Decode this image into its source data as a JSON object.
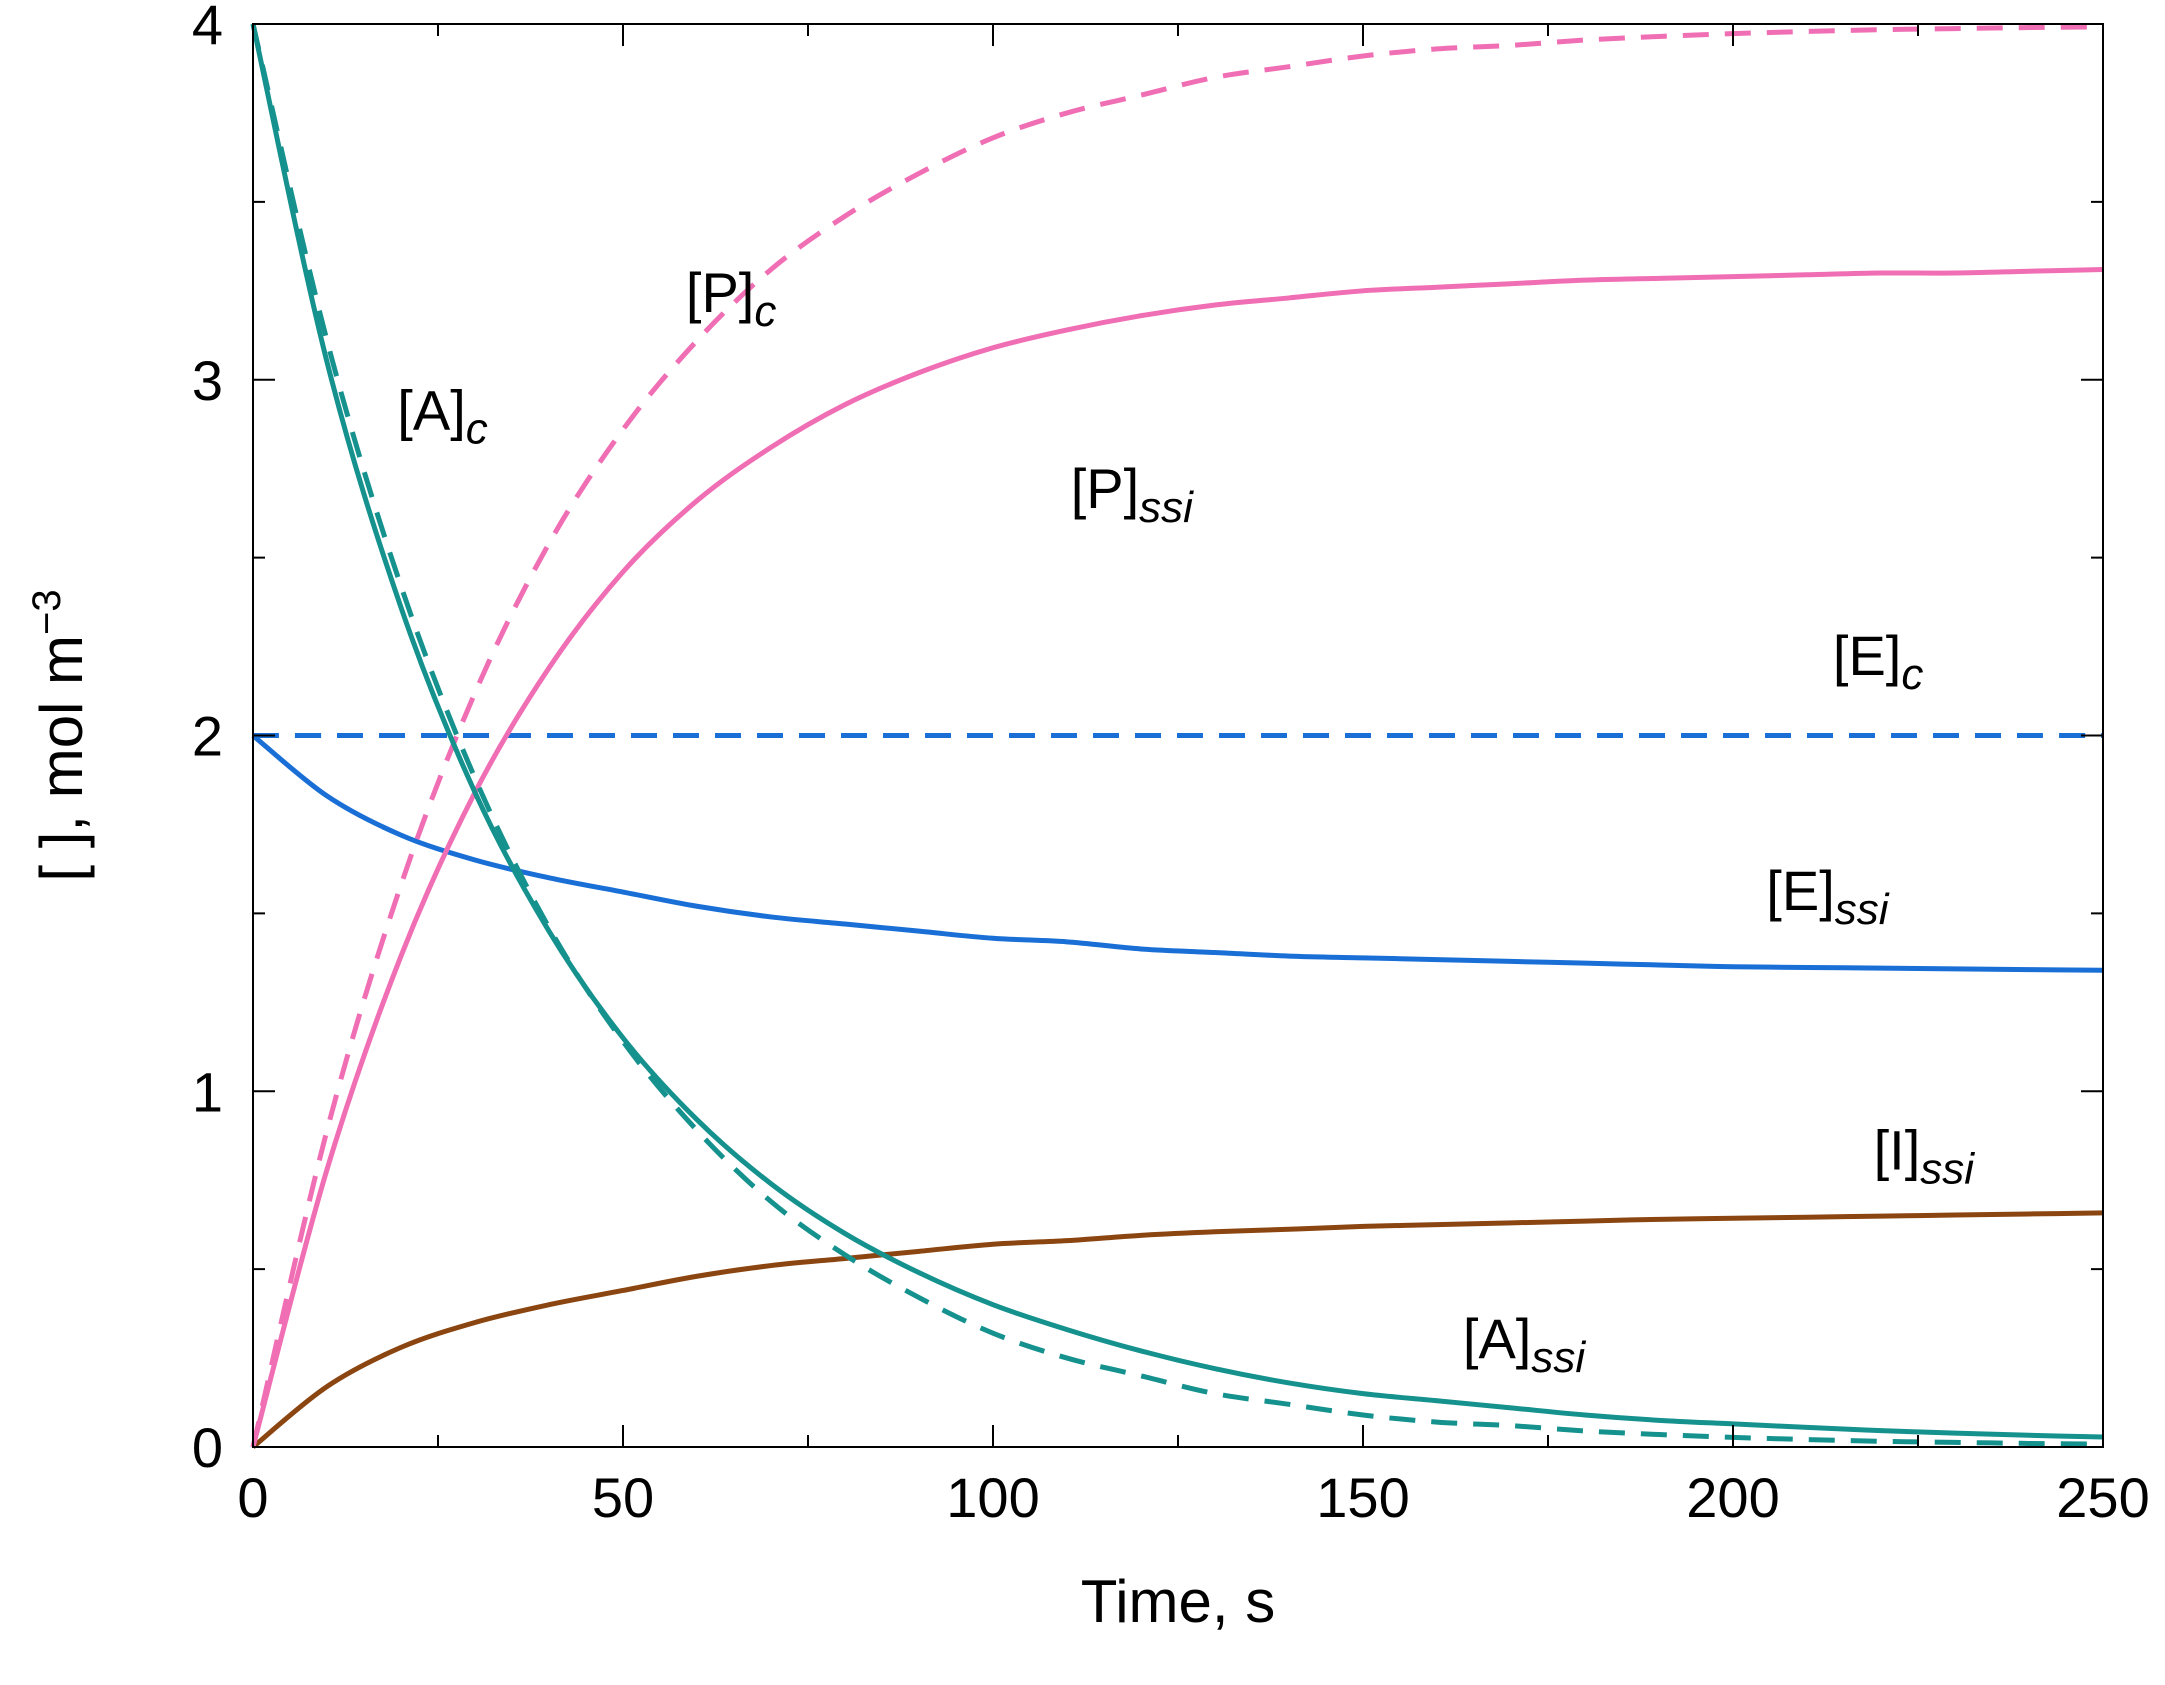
{
  "chart_data": {
    "type": "line",
    "title": "",
    "xlabel": "Time, s",
    "ylabel_main": "[  ], mol m",
    "ylabel_sup": "−3",
    "xlim": [
      0,
      250
    ],
    "ylim": [
      0,
      4
    ],
    "x_major_ticks": [
      0,
      50,
      100,
      150,
      200,
      250
    ],
    "x_minor_ticks": [
      25,
      75,
      125,
      175,
      225
    ],
    "y_major_ticks": [
      0,
      1,
      2,
      3,
      4
    ],
    "y_minor_ticks": [
      0.5,
      1.5,
      2.5,
      3.5
    ],
    "x_tick_labels": [
      "0",
      "50",
      "100",
      "150",
      "200",
      "250"
    ],
    "y_tick_labels": [
      "0",
      "1",
      "2",
      "3",
      "4"
    ],
    "x": [
      0,
      10,
      20,
      30,
      40,
      50,
      60,
      70,
      80,
      90,
      100,
      110,
      120,
      130,
      140,
      150,
      160,
      170,
      180,
      190,
      200,
      210,
      220,
      230,
      240,
      250
    ],
    "series": [
      {
        "name": "[A]c",
        "color": "#15918e",
        "dash": true,
        "values": [
          4.0,
          3.11,
          2.42,
          1.88,
          1.46,
          1.14,
          0.89,
          0.69,
          0.54,
          0.42,
          0.32,
          0.25,
          0.2,
          0.15,
          0.12,
          0.09,
          0.07,
          0.06,
          0.045,
          0.035,
          0.027,
          0.021,
          0.016,
          0.013,
          0.01,
          0.008
        ]
      },
      {
        "name": "[A]ssi",
        "color": "#15918e",
        "dash": false,
        "values": [
          4.0,
          3.05,
          2.36,
          1.84,
          1.45,
          1.15,
          0.92,
          0.74,
          0.6,
          0.49,
          0.4,
          0.33,
          0.27,
          0.22,
          0.18,
          0.15,
          0.13,
          0.11,
          0.09,
          0.075,
          0.065,
          0.055,
          0.046,
          0.039,
          0.033,
          0.028
        ]
      },
      {
        "name": "[P]c",
        "color": "#f06eb4",
        "dash": true,
        "values": [
          0.0,
          0.89,
          1.58,
          2.12,
          2.54,
          2.86,
          3.11,
          3.31,
          3.46,
          3.58,
          3.68,
          3.75,
          3.8,
          3.85,
          3.88,
          3.91,
          3.93,
          3.94,
          3.955,
          3.965,
          3.973,
          3.979,
          3.984,
          3.987,
          3.99,
          3.992
        ]
      },
      {
        "name": "[P]ssi",
        "color": "#f06eb4",
        "dash": false,
        "values": [
          0.0,
          0.78,
          1.38,
          1.84,
          2.19,
          2.46,
          2.66,
          2.81,
          2.93,
          3.02,
          3.09,
          3.14,
          3.18,
          3.21,
          3.23,
          3.25,
          3.26,
          3.27,
          3.28,
          3.285,
          3.29,
          3.295,
          3.3,
          3.3,
          3.305,
          3.31
        ]
      },
      {
        "name": "[E]c",
        "color": "#1a6fd6",
        "dash": true,
        "values": [
          2.0,
          2.0,
          2.0,
          2.0,
          2.0,
          2.0,
          2.0,
          2.0,
          2.0,
          2.0,
          2.0,
          2.0,
          2.0,
          2.0,
          2.0,
          2.0,
          2.0,
          2.0,
          2.0,
          2.0,
          2.0,
          2.0,
          2.0,
          2.0,
          2.0,
          2.0
        ]
      },
      {
        "name": "[E]ssi",
        "color": "#1a6fd6",
        "dash": false,
        "values": [
          2.0,
          1.83,
          1.72,
          1.65,
          1.6,
          1.56,
          1.52,
          1.49,
          1.47,
          1.45,
          1.43,
          1.42,
          1.4,
          1.39,
          1.38,
          1.375,
          1.37,
          1.365,
          1.36,
          1.355,
          1.35,
          1.348,
          1.346,
          1.344,
          1.342,
          1.34
        ]
      },
      {
        "name": "[I]ssi",
        "color": "#8b4510",
        "dash": false,
        "values": [
          0.0,
          0.17,
          0.28,
          0.35,
          0.4,
          0.44,
          0.48,
          0.51,
          0.53,
          0.55,
          0.57,
          0.58,
          0.595,
          0.605,
          0.612,
          0.62,
          0.625,
          0.63,
          0.635,
          0.64,
          0.643,
          0.646,
          0.649,
          0.652,
          0.655,
          0.658
        ]
      }
    ],
    "annotations": [
      {
        "id": "pc",
        "main": "[P]",
        "sub": "c",
        "x": 58.5,
        "y": 3.19
      },
      {
        "id": "ac",
        "main": "[A]",
        "sub": "c",
        "x": 19.5,
        "y": 2.86
      },
      {
        "id": "pssi",
        "main": "[P]",
        "sub": "ssi",
        "x": 110.5,
        "y": 2.64
      },
      {
        "id": "ec",
        "main": "[E]",
        "sub": "c",
        "x": 213.5,
        "y": 2.17
      },
      {
        "id": "essi",
        "main": "[E]",
        "sub": "ssi",
        "x": 204.5,
        "y": 1.51
      },
      {
        "id": "issi",
        "main": "[I]",
        "sub": "ssi",
        "x": 219,
        "y": 0.78
      },
      {
        "id": "assi",
        "main": "[A]",
        "sub": "ssi",
        "x": 163.5,
        "y": 0.25
      }
    ]
  }
}
